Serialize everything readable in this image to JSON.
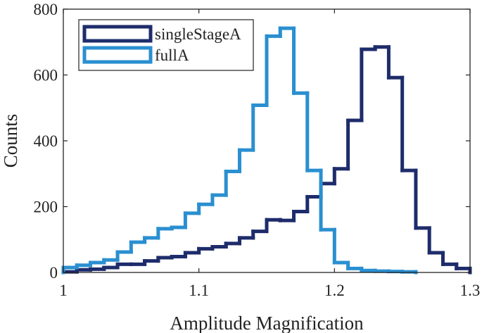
{
  "chart_data": {
    "type": "histogram",
    "xlabel": "Amplitude Magnification",
    "ylabel": "Counts",
    "xlim": [
      1,
      1.3
    ],
    "ylim": [
      0,
      800
    ],
    "xticks": [
      1,
      1.1,
      1.2,
      1.3
    ],
    "yticks": [
      0,
      200,
      400,
      600,
      800
    ],
    "legend": "upper left",
    "series": [
      {
        "name": "singleStageA",
        "color": "#1e2c6b",
        "bins": [
          1.0,
          1.01,
          1.02,
          1.03,
          1.04,
          1.05,
          1.06,
          1.07,
          1.08,
          1.09,
          1.1,
          1.11,
          1.12,
          1.13,
          1.14,
          1.15,
          1.16,
          1.17,
          1.18,
          1.19,
          1.2,
          1.21,
          1.22,
          1.23,
          1.24,
          1.25,
          1.26,
          1.27,
          1.28,
          1.29,
          1.3
        ],
        "values": [
          2,
          8,
          10,
          15,
          25,
          25,
          35,
          45,
          48,
          60,
          72,
          78,
          88,
          105,
          125,
          160,
          158,
          185,
          230,
          270,
          315,
          462,
          678,
          685,
          592,
          310,
          135,
          60,
          25,
          12
        ]
      },
      {
        "name": "fullA",
        "color": "#2a8fd0",
        "bins": [
          1.0,
          1.01,
          1.02,
          1.03,
          1.04,
          1.05,
          1.06,
          1.07,
          1.08,
          1.09,
          1.1,
          1.11,
          1.12,
          1.13,
          1.14,
          1.15,
          1.16,
          1.17,
          1.18,
          1.19,
          1.2,
          1.21,
          1.22,
          1.23,
          1.24,
          1.25,
          1.26
        ],
        "values": [
          15,
          22,
          30,
          38,
          62,
          92,
          105,
          133,
          137,
          180,
          207,
          235,
          307,
          372,
          508,
          718,
          742,
          545,
          310,
          130,
          30,
          12,
          6,
          4,
          3,
          2
        ]
      }
    ]
  }
}
